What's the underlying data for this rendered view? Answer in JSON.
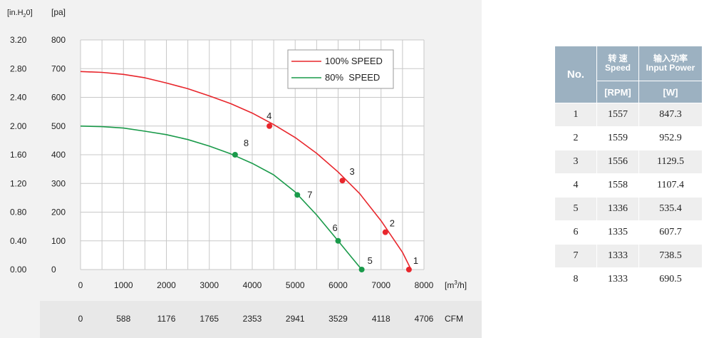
{
  "chart_data": {
    "type": "line",
    "title": "",
    "left_unit_label": "[in.H",
    "left_unit_sub": "2",
    "left_unit_tail": "0]",
    "ylabel": "[pa]",
    "xlabel_pre": "[m",
    "xlabel_sup": "3",
    "xlabel_post": "/h]",
    "cfm_unit": "CFM",
    "xlim": [
      0,
      8000
    ],
    "ylim": [
      0,
      800
    ],
    "x_ticks": [
      "0",
      "1000",
      "2000",
      "3000",
      "4000",
      "5000",
      "6000",
      "7000",
      "8000"
    ],
    "y_ticks": [
      "0",
      "100",
      "200",
      "300",
      "400",
      "500",
      "600",
      "700",
      "800"
    ],
    "y_ticks_inH2O": [
      "0.00",
      "0.40",
      "0.80",
      "1.20",
      "1.60",
      "2.00",
      "2.40",
      "2.80",
      "3.20"
    ],
    "cfm_ticks": [
      "0",
      "588",
      "1176",
      "1765",
      "2353",
      "2941",
      "3529",
      "4118",
      "4706"
    ],
    "grid": true,
    "legend_position": "top-right",
    "series": [
      {
        "name": "100% SPEED",
        "color": "#e8262c",
        "x": [
          0,
          500,
          1000,
          1500,
          2000,
          2500,
          3000,
          3500,
          4000,
          4500,
          5000,
          5500,
          6000,
          6500,
          7000,
          7500,
          7700
        ],
        "y": [
          690,
          687,
          680,
          668,
          650,
          630,
          605,
          578,
          545,
          505,
          460,
          405,
          340,
          265,
          170,
          60,
          0
        ],
        "points": [
          {
            "label": "4",
            "x": 4400,
            "y": 500
          },
          {
            "label": "3",
            "x": 6100,
            "y": 310
          },
          {
            "label": "2",
            "x": 7100,
            "y": 130
          },
          {
            "label": "1",
            "x": 7650,
            "y": 0
          }
        ]
      },
      {
        "name": "80%  SPEED",
        "color": "#1a9a4a",
        "x": [
          0,
          500,
          1000,
          1500,
          2000,
          2500,
          3000,
          3500,
          4000,
          4500,
          5000,
          5500,
          6000,
          6300,
          6550
        ],
        "y": [
          500,
          498,
          493,
          482,
          470,
          453,
          430,
          403,
          370,
          330,
          270,
          190,
          100,
          45,
          0
        ],
        "points": [
          {
            "label": "8",
            "x": 3600,
            "y": 400
          },
          {
            "label": "7",
            "x": 5050,
            "y": 260
          },
          {
            "label": "6",
            "x": 6000,
            "y": 100
          },
          {
            "label": "5",
            "x": 6550,
            "y": 0
          }
        ]
      }
    ]
  },
  "table": {
    "header_no": "No.",
    "header_speed_cn": "转 速",
    "header_speed_en": "Speed",
    "header_power_cn": "输入功率",
    "header_power_en": "Input Power",
    "unit_speed": "[RPM]",
    "unit_power": "[W]",
    "rows": [
      {
        "no": "1",
        "speed": "1557",
        "power": "847.3"
      },
      {
        "no": "2",
        "speed": "1559",
        "power": "952.9"
      },
      {
        "no": "3",
        "speed": "1556",
        "power": "1129.5"
      },
      {
        "no": "4",
        "speed": "1558",
        "power": "1107.4"
      },
      {
        "no": "5",
        "speed": "1336",
        "power": "535.4"
      },
      {
        "no": "6",
        "speed": "1335",
        "power": "607.7"
      },
      {
        "no": "7",
        "speed": "1333",
        "power": "738.5"
      },
      {
        "no": "8",
        "speed": "1333",
        "power": "690.5"
      }
    ]
  },
  "colors": {
    "panel": "#f2f2f2",
    "footer": "#e8e8e8",
    "grid": "#c8c8c8",
    "table_header": "#9cb1c1",
    "table_band": "#eeeeee"
  }
}
